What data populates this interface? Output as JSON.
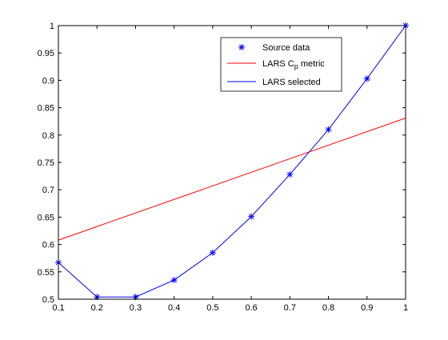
{
  "chart_data": {
    "type": "line",
    "title": "",
    "xlabel": "",
    "ylabel": "",
    "xlim": [
      0.1,
      1
    ],
    "ylim": [
      0.5,
      1
    ],
    "grid": false,
    "legend_position": "top-right",
    "x_ticks": [
      "0.1",
      "0.2",
      "0.3",
      "0.4",
      "0.5",
      "0.6",
      "0.7",
      "0.8",
      "0.9",
      "1"
    ],
    "y_ticks": [
      "0.5",
      "0.55",
      "0.6",
      "0.65",
      "0.7",
      "0.75",
      "0.8",
      "0.85",
      "0.9",
      "0.95",
      "1"
    ],
    "series": [
      {
        "name": "Source data",
        "style": "markers",
        "marker": "asterisk",
        "color": "#0000ff",
        "x": [
          0.1,
          0.2,
          0.3,
          0.4,
          0.5,
          0.6,
          0.7,
          0.8,
          0.9,
          1.0
        ],
        "y": [
          0.567,
          0.504,
          0.504,
          0.535,
          0.585,
          0.651,
          0.728,
          0.81,
          0.903,
          1.0
        ]
      },
      {
        "name": "LARS Cp metric",
        "name_main": "LARS C",
        "name_sub": "p",
        "name_rest": " metric",
        "style": "line",
        "color": "#ff0000",
        "x": [
          0.1,
          1.0
        ],
        "y": [
          0.608,
          0.831
        ]
      },
      {
        "name": "LARS selected",
        "style": "line",
        "color": "#0000ff",
        "x": [
          0.1,
          0.2,
          0.3,
          0.4,
          0.5,
          0.6,
          0.7,
          0.8,
          0.9,
          1.0
        ],
        "y": [
          0.567,
          0.504,
          0.504,
          0.535,
          0.585,
          0.651,
          0.728,
          0.81,
          0.903,
          1.0
        ]
      }
    ]
  }
}
